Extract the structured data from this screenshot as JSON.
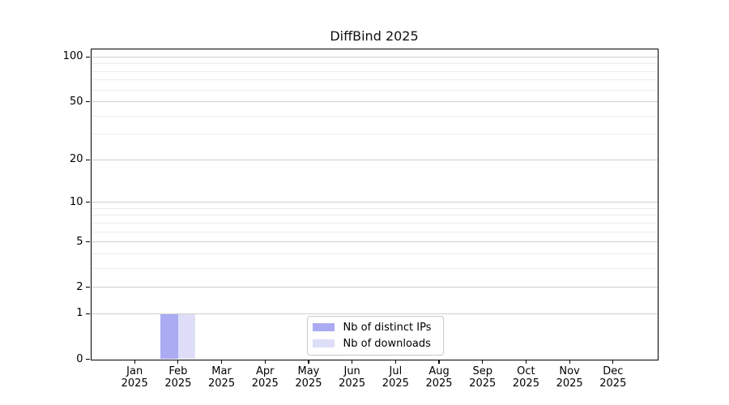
{
  "chart_data": {
    "type": "bar",
    "title": "DiffBind 2025",
    "categories": [
      "Jan",
      "Feb",
      "Mar",
      "Apr",
      "May",
      "Jun",
      "Jul",
      "Aug",
      "Sep",
      "Oct",
      "Nov",
      "Dec"
    ],
    "category_year": "2025",
    "series": [
      {
        "name": "Nb of distinct IPs",
        "color": "#aaabf2",
        "values": [
          0,
          1,
          0,
          0,
          0,
          0,
          0,
          0,
          0,
          0,
          0,
          0
        ]
      },
      {
        "name": "Nb of downloads",
        "color": "#dedef8",
        "values": [
          0,
          1,
          0,
          0,
          0,
          0,
          0,
          0,
          0,
          0,
          0,
          0
        ]
      }
    ],
    "y_axis": {
      "scale": "log1p",
      "min": 0,
      "max": 113,
      "ticks": [
        0,
        1,
        2,
        5,
        10,
        20,
        50,
        100
      ],
      "minor_gridlines": [
        3,
        4,
        6,
        7,
        8,
        9,
        30,
        40,
        60,
        70,
        80,
        90
      ]
    },
    "x_axis": {
      "tick_label_line2": "2025"
    },
    "grid": true,
    "legend_position": "bottom-center",
    "colors": {
      "major_grid": "#cfcfcf",
      "minor_grid": "#ebebeb",
      "spine": "#000000",
      "text": "#000000",
      "legend_border": "#c8c8c8",
      "background": "#ffffff"
    }
  }
}
